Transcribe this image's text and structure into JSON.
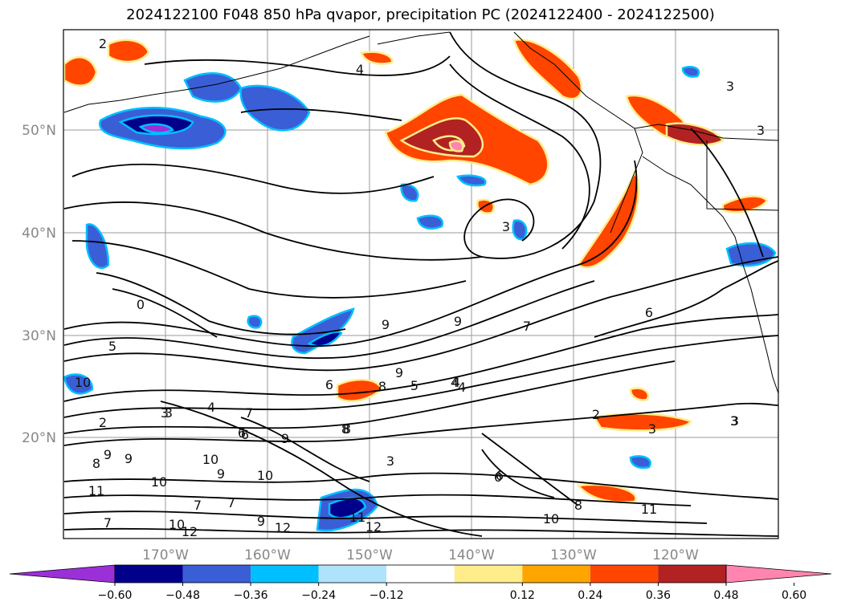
{
  "title": "2024122100 F048 850 hPa qvapor, precipitation PC (2024122400 - 2024122500)",
  "map": {
    "lat_labels": [
      "50°N",
      "40°N",
      "30°N",
      "20°N"
    ],
    "lon_labels": [
      "170°W",
      "160°W",
      "150°W",
      "140°W",
      "130°W",
      "120°W"
    ],
    "contour_labels": [
      "2",
      "4",
      "3",
      "3",
      "3",
      "4",
      "3",
      "12",
      "3",
      "0",
      "5",
      "10",
      "2",
      "3",
      "4",
      "7",
      "9",
      "6",
      "9",
      "8",
      "9",
      "7",
      "9",
      "8",
      "5",
      "4",
      "6",
      "2",
      "3",
      "3",
      "9",
      "8",
      "9",
      "11",
      "6",
      "10",
      "9",
      "10",
      "10",
      "9",
      "7",
      "7",
      "11",
      "12",
      "10",
      "12",
      "3",
      "6",
      "8",
      "6",
      "6",
      "4",
      "10",
      "11",
      "8",
      "7"
    ]
  },
  "colorbar": {
    "colors": [
      "#9b30d9",
      "#00008b",
      "#3a5ed6",
      "#00bfff",
      "#afe3fb",
      "#ffffff",
      "#ffec8b",
      "#ffa500",
      "#ff4500",
      "#b22222",
      "#ff85b0"
    ],
    "tick_labels": [
      "−0.60",
      "−0.48",
      "−0.36",
      "−0.24",
      "−0.12",
      "0.12",
      "0.24",
      "0.36",
      "0.48",
      "0.60"
    ]
  }
}
